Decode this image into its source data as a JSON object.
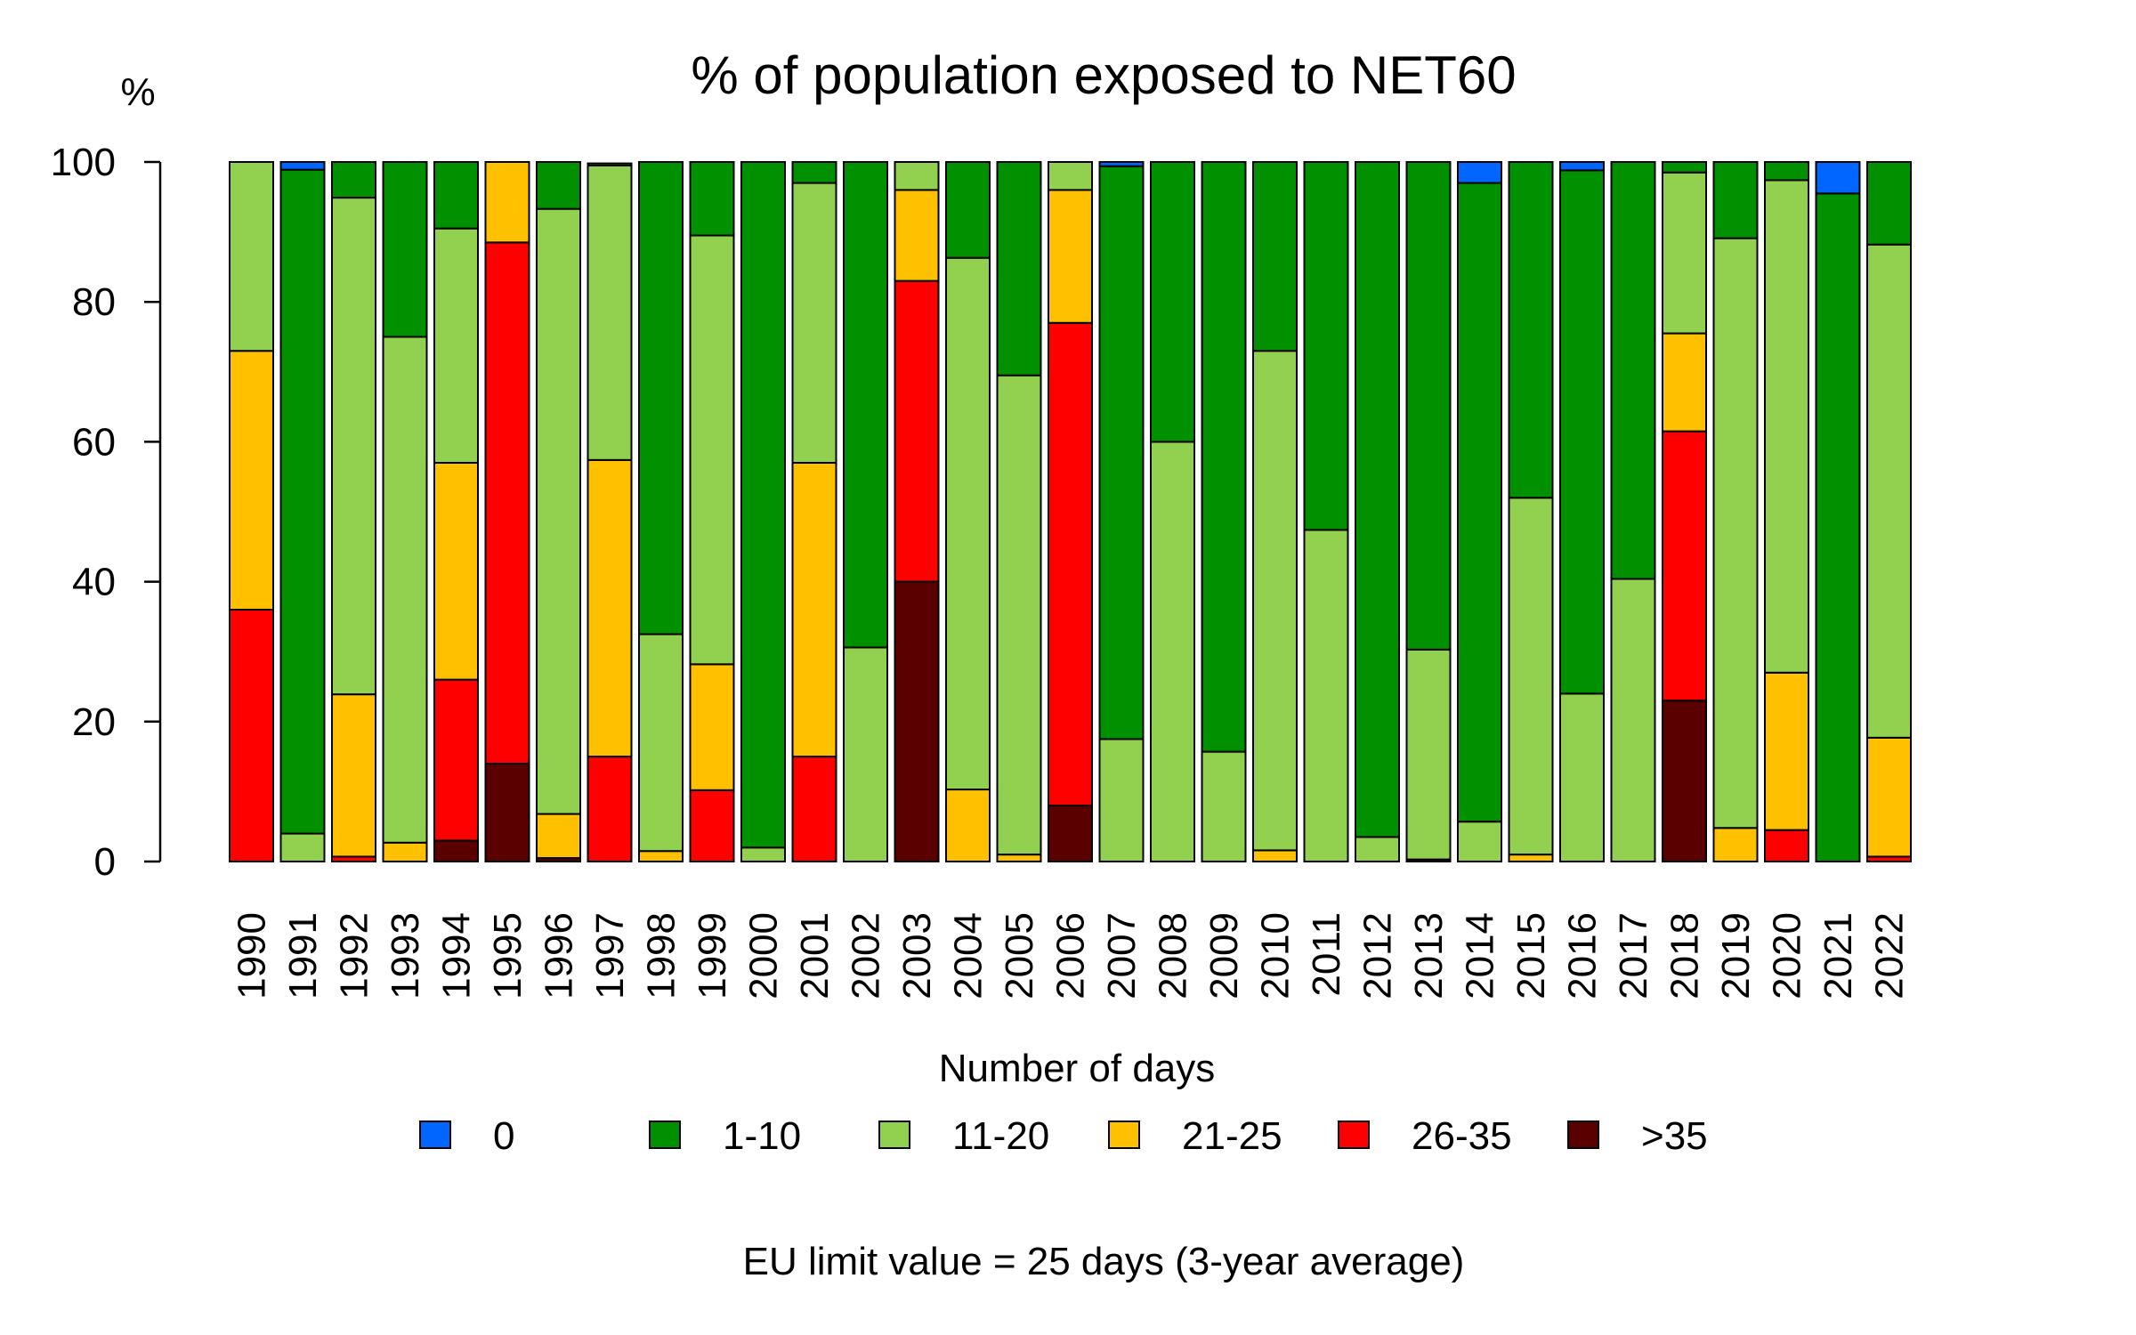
{
  "chart_data": {
    "type": "bar",
    "stacked": true,
    "title": "% of population exposed to NET60",
    "ylabel": "%",
    "ylim": [
      0,
      100
    ],
    "yticks": [
      0,
      20,
      40,
      60,
      80,
      100
    ],
    "legend_title": "Number of days",
    "legend_position": "bottom",
    "note": "EU limit value = 25 days (3-year average)",
    "categories": [
      "1990",
      "1991",
      "1992",
      "1993",
      "1994",
      "1995",
      "1996",
      "1997",
      "1998",
      "1999",
      "2000",
      "2001",
      "2002",
      "2003",
      "2004",
      "2005",
      "2006",
      "2007",
      "2008",
      "2009",
      "2010",
      "2011",
      "2012",
      "2013",
      "2014",
      "2015",
      "2016",
      "2017",
      "2018",
      "2019",
      "2020",
      "2021",
      "2022"
    ],
    "series": [
      {
        "name": ">35",
        "color": "#5a0000",
        "values": [
          0,
          0,
          0,
          0,
          3,
          14,
          0.5,
          0,
          0,
          0,
          0,
          0,
          0,
          40,
          0,
          0,
          8,
          0,
          0,
          0,
          0,
          0,
          0,
          0.3,
          0,
          0,
          0,
          0,
          23,
          0,
          0,
          0,
          0
        ]
      },
      {
        "name": "26-35",
        "color": "#ff0000",
        "values": [
          36,
          0,
          0.7,
          0,
          23,
          74.5,
          0,
          15,
          0,
          10.2,
          0,
          15,
          0,
          43,
          0,
          0,
          69,
          0,
          0,
          0,
          0,
          0,
          0,
          0,
          0,
          0,
          0,
          0,
          38.5,
          0,
          4.5,
          0,
          0.7
        ]
      },
      {
        "name": "21-25",
        "color": "#ffc000",
        "values": [
          37,
          0,
          23.2,
          2.7,
          31,
          11.5,
          6.3,
          42.4,
          1.5,
          18,
          0,
          42,
          0,
          13,
          10.3,
          1,
          19,
          0,
          0,
          0,
          1.6,
          0,
          0,
          0,
          0,
          1,
          0,
          0,
          14,
          4.8,
          22.5,
          0,
          17
        ]
      },
      {
        "name": "11-20",
        "color": "#92d050",
        "values": [
          27,
          4,
          71,
          72.3,
          33.5,
          0,
          86.5,
          42.1,
          31,
          61.3,
          2,
          40,
          30.6,
          4,
          76,
          68.5,
          4,
          17.5,
          60,
          15.7,
          71.4,
          47.4,
          3.5,
          30,
          5.7,
          51,
          24,
          40.4,
          23,
          84.3,
          70.4,
          0,
          70.5
        ]
      },
      {
        "name": "1-10",
        "color": "#009000",
        "values": [
          0,
          94.9,
          5.1,
          25,
          9.5,
          0,
          6.7,
          0.3,
          67.5,
          10.5,
          98,
          3,
          69.4,
          0,
          13.7,
          30.5,
          0,
          81.9,
          40,
          84.3,
          27,
          52.6,
          96.5,
          69.7,
          91.3,
          48,
          74.8,
          59.6,
          1.5,
          10.9,
          2.6,
          95.5,
          11.8
        ]
      },
      {
        "name": "0",
        "color": "#0066ff",
        "values": [
          0,
          1.1,
          0,
          0,
          0,
          0,
          0,
          0,
          0,
          0,
          0,
          0,
          0,
          0,
          0,
          0,
          0,
          0.6,
          0,
          0,
          0,
          0,
          0,
          0,
          3,
          0,
          1.2,
          0,
          0,
          0,
          0,
          4.5,
          0
        ]
      }
    ],
    "legend_order": [
      "0",
      "1-10",
      "11-20",
      "21-25",
      "26-35",
      ">35"
    ]
  }
}
